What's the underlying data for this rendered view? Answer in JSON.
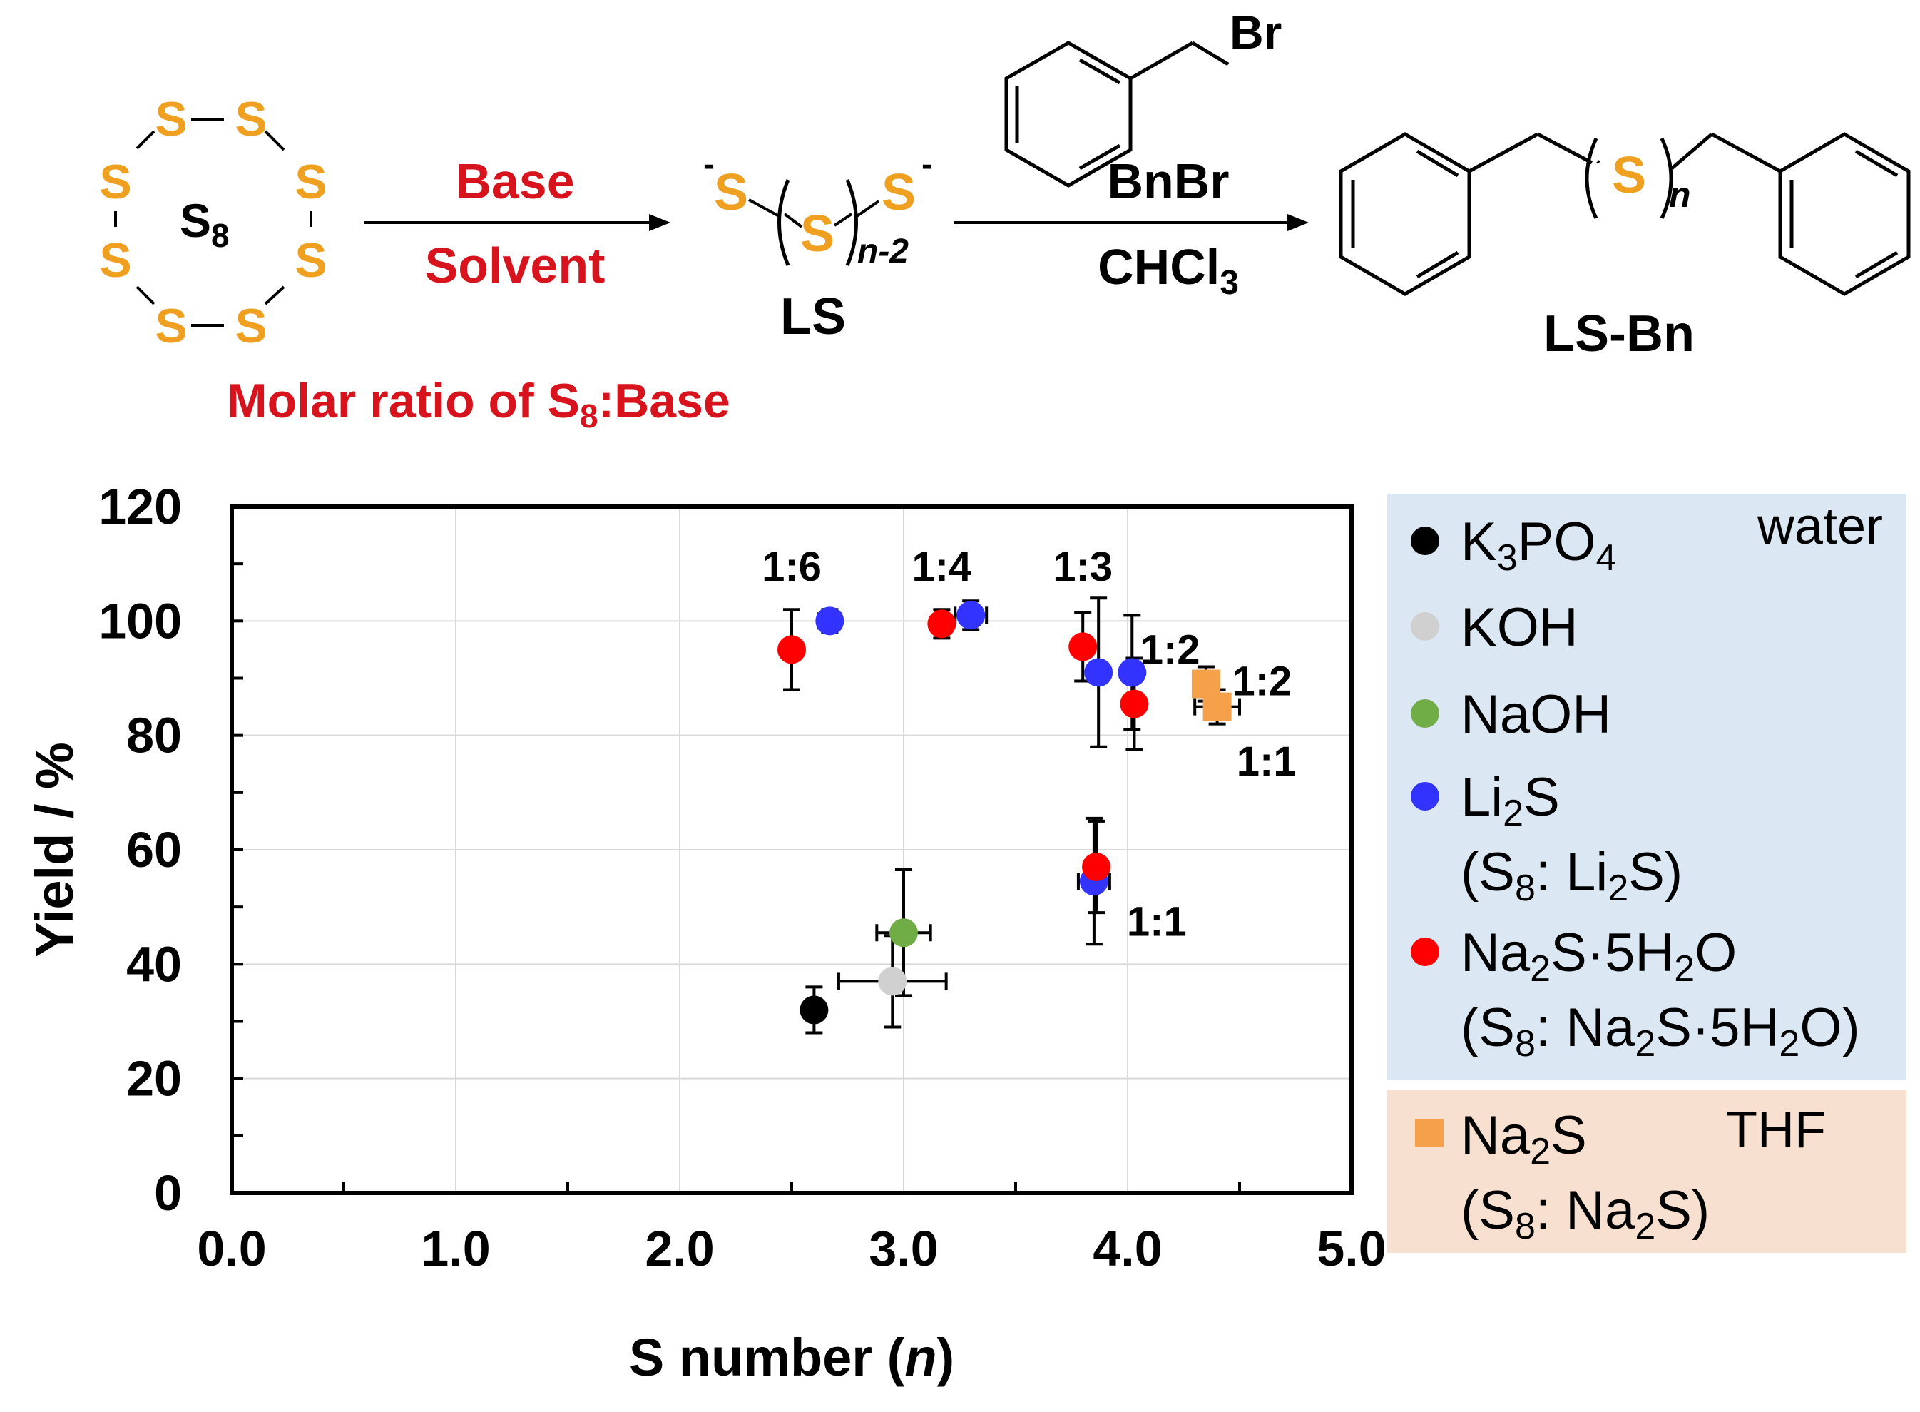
{
  "colors": {
    "scheme_red": "#d7141e",
    "sulfur": "#f0a020",
    "water_panel": "#dbe8f4",
    "thf_panel": "#f8e0d0",
    "black": "#000000",
    "grey": "#d0d0d0",
    "green": "#70ad47",
    "blue": "#3333ff",
    "red": "#ff0000",
    "orange": "#f7a04a"
  },
  "scheme": {
    "s8": {
      "s_atom": "S",
      "label_main": "S",
      "label_sub": "8"
    },
    "reagent_top": "Base",
    "reagent_bottom": "Solvent",
    "molar_ratio": {
      "part1": "Molar ratio of S",
      "sub": "8",
      "part2": ":Base"
    },
    "ls": {
      "s_left": "S",
      "charge_left": "-",
      "s_center": "S",
      "s_right": "S",
      "charge_right": "-",
      "index": "n-2",
      "name": "LS"
    },
    "bnbr_br": "Br",
    "bnbr_label": "BnBr",
    "solvent2": {
      "main": "CHCl",
      "sub": "3"
    },
    "product": {
      "s_center": "S",
      "index": "n",
      "name": "LS-Bn"
    }
  },
  "chart_data": {
    "type": "scatter",
    "xlabel": "S number (n)",
    "xlabel_parts": {
      "prefix": "S number (",
      "var": "n",
      "suffix": ")"
    },
    "ylabel": "Yield / %",
    "xlim": [
      0,
      5
    ],
    "ylim": [
      0,
      120
    ],
    "xticks": [
      "0.0",
      "1.0",
      "2.0",
      "3.0",
      "4.0",
      "5.0"
    ],
    "yticks": [
      "0",
      "20",
      "40",
      "60",
      "80",
      "100",
      "120"
    ],
    "grid": true,
    "legend_position": "right",
    "series": [
      {
        "name": "K3PO4",
        "key": "k3po4",
        "color": "black",
        "marker": "circle",
        "points": [
          {
            "x": 2.6,
            "y": 32,
            "xerr": 0,
            "yerr": 4
          }
        ]
      },
      {
        "name": "KOH",
        "key": "koh",
        "color": "grey",
        "marker": "circle",
        "points": [
          {
            "x": 2.95,
            "y": 37,
            "xerr": 0.24,
            "yerr": 8
          }
        ]
      },
      {
        "name": "NaOH",
        "key": "naoh",
        "color": "green",
        "marker": "circle",
        "points": [
          {
            "x": 3.0,
            "y": 45.5,
            "xerr": 0.12,
            "yerr": 11
          }
        ]
      },
      {
        "name": "Li2S",
        "key": "li2s",
        "color": "blue",
        "marker": "circle",
        "points": [
          {
            "x": 2.67,
            "y": 100,
            "xerr": 0.05,
            "yerr": 2
          },
          {
            "x": 3.3,
            "y": 101,
            "xerr": 0.07,
            "yerr": 2.5
          },
          {
            "x": 3.87,
            "y": 91,
            "xerr": 0,
            "yerr": 13
          },
          {
            "x": 4.02,
            "y": 91,
            "xerr": 0,
            "yerr": 10
          },
          {
            "x": 3.85,
            "y": 54.5,
            "xerr": 0.07,
            "yerr": 11
          }
        ]
      },
      {
        "name": "Na2S·5H2O",
        "key": "na2s5h2o",
        "color": "red",
        "marker": "circle",
        "points": [
          {
            "x": 2.5,
            "y": 95,
            "xerr": 0,
            "yerr": 7
          },
          {
            "x": 3.17,
            "y": 99.5,
            "xerr": 0,
            "yerr": 2.5
          },
          {
            "x": 3.8,
            "y": 95.5,
            "xerr": 0,
            "yerr": 6
          },
          {
            "x": 4.03,
            "y": 85.5,
            "xerr": 0,
            "yerr": 8
          },
          {
            "x": 3.86,
            "y": 57,
            "xerr": 0,
            "yerr": 8
          }
        ]
      },
      {
        "name": "Na2S",
        "key": "na2s",
        "color": "orange",
        "marker": "square",
        "points": [
          {
            "x": 4.35,
            "y": 89,
            "xerr": 0.05,
            "yerr": 3
          },
          {
            "x": 4.4,
            "y": 85,
            "xerr": 0.1,
            "yerr": 3
          }
        ]
      }
    ],
    "annotations": [
      {
        "text": "1:6",
        "x": 2.5,
        "y": 107,
        "anchor": "middle"
      },
      {
        "text": "1:4",
        "x": 3.17,
        "y": 107,
        "anchor": "middle"
      },
      {
        "text": "1:3",
        "x": 3.8,
        "y": 107,
        "anchor": "middle"
      },
      {
        "text": "1:2",
        "x": 4.19,
        "y": 92.5,
        "anchor": "middle"
      },
      {
        "text": "1:2",
        "x": 4.6,
        "y": 87,
        "anchor": "middle"
      },
      {
        "text": "1:1",
        "x": 4.62,
        "y": 73,
        "anchor": "middle"
      },
      {
        "text": "1:1",
        "x": 4.13,
        "y": 45,
        "anchor": "middle"
      }
    ],
    "legend": {
      "water_label": "water",
      "thf_label": "THF",
      "entries": [
        {
          "key": "k3po4",
          "text": "K3PO4"
        },
        {
          "key": "koh",
          "text": "KOH"
        },
        {
          "key": "naoh",
          "text": "NaOH"
        },
        {
          "key": "li2s",
          "text": "Li2S",
          "note": "(S8: Li2S)"
        },
        {
          "key": "na2s5h2o",
          "text": "Na2S·5H2O",
          "note": "(S8: Na2S·5H2O)"
        },
        {
          "key": "na2s",
          "text": "Na2S",
          "note": "(S8: Na2S)"
        }
      ]
    }
  }
}
